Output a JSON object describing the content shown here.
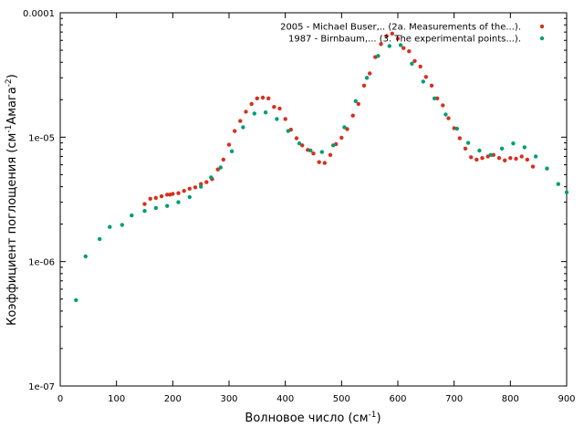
{
  "chart_data": {
    "type": "scatter",
    "title": "",
    "xlabel": "Волновое число (см",
    "xlabel_sup": "-1",
    "xlabel_end": ")",
    "ylabel": "Коэффициент поглощения (см",
    "ylabel_sup1": "-1",
    "ylabel_mid": "Амага",
    "ylabel_sup2": "-2",
    "ylabel_end": ")",
    "xlim": [
      0,
      900
    ],
    "ylim": [
      1e-07,
      0.0001
    ],
    "yscale": "log",
    "x_ticks": [
      0,
      100,
      200,
      300,
      400,
      500,
      600,
      700,
      800,
      900
    ],
    "x_tick_labels": [
      "0",
      "100",
      "200",
      "300",
      "400",
      "500",
      "600",
      "700",
      "800",
      "900"
    ],
    "y_ticks": [
      1e-07,
      1e-06,
      1e-05,
      0.0001
    ],
    "y_tick_labels": [
      "1e-07",
      "1e-06",
      "1e-05",
      "0.0001"
    ],
    "grid": false,
    "legend_position": "top-right",
    "series": [
      {
        "name": "2005 - Michael Buser,.. (2a. Measurements of the...).",
        "color": "#d7301f",
        "points": [
          [
            150,
            2.9e-06
          ],
          [
            160,
            3.2e-06
          ],
          [
            170,
            3.25e-06
          ],
          [
            180,
            3.35e-06
          ],
          [
            190,
            3.45e-06
          ],
          [
            195,
            3.45e-06
          ],
          [
            200,
            3.5e-06
          ],
          [
            210,
            3.55e-06
          ],
          [
            220,
            3.7e-06
          ],
          [
            230,
            3.85e-06
          ],
          [
            240,
            3.95e-06
          ],
          [
            250,
            4.2e-06
          ],
          [
            260,
            4.35e-06
          ],
          [
            270,
            4.6e-06
          ],
          [
            280,
            5.5e-06
          ],
          [
            290,
            6.6e-06
          ],
          [
            300,
            8.7e-06
          ],
          [
            310,
            1.12e-05
          ],
          [
            320,
            1.35e-05
          ],
          [
            330,
            1.6e-05
          ],
          [
            340,
            1.85e-05
          ],
          [
            350,
            2.05e-05
          ],
          [
            360,
            2.08e-05
          ],
          [
            370,
            2.05e-05
          ],
          [
            380,
            1.75e-05
          ],
          [
            390,
            1.7e-05
          ],
          [
            400,
            1.4e-05
          ],
          [
            410,
            1.15e-05
          ],
          [
            420,
            9.8e-06
          ],
          [
            430,
            8.6e-06
          ],
          [
            440,
            7.9e-06
          ],
          [
            450,
            7.4e-06
          ],
          [
            460,
            6.3e-06
          ],
          [
            470,
            6.2e-06
          ],
          [
            480,
            7.2e-06
          ],
          [
            490,
            8.8e-06
          ],
          [
            500,
            9.9e-06
          ],
          [
            510,
            1.16e-05
          ],
          [
            520,
            1.49e-05
          ],
          [
            530,
            1.85e-05
          ],
          [
            540,
            2.6e-05
          ],
          [
            550,
            3.25e-05
          ],
          [
            560,
            4.4e-05
          ],
          [
            570,
            5.6e-05
          ],
          [
            580,
            6.5e-05
          ],
          [
            590,
            6.8e-05
          ],
          [
            600,
            6.2e-05
          ],
          [
            610,
            5.2e-05
          ],
          [
            620,
            4.9e-05
          ],
          [
            630,
            4.1e-05
          ],
          [
            640,
            3.7e-05
          ],
          [
            650,
            3.05e-05
          ],
          [
            660,
            2.6e-05
          ],
          [
            670,
            2.05e-05
          ],
          [
            680,
            1.8e-05
          ],
          [
            690,
            1.42e-05
          ],
          [
            700,
            1.18e-05
          ],
          [
            710,
            9.8e-06
          ],
          [
            720,
            8.1e-06
          ],
          [
            730,
            6.9e-06
          ],
          [
            740,
            6.6e-06
          ],
          [
            750,
            6.8e-06
          ],
          [
            760,
            7e-06
          ],
          [
            770,
            7.2e-06
          ],
          [
            780,
            6.8e-06
          ],
          [
            790,
            6.5e-06
          ],
          [
            800,
            6.8e-06
          ],
          [
            810,
            6.7e-06
          ],
          [
            820,
            7e-06
          ],
          [
            830,
            6.6e-06
          ],
          [
            840,
            5.8e-06
          ]
        ]
      },
      {
        "name": "1987 - Birnbaum,... (3. The experimental points...).",
        "color": "#009e73",
        "points": [
          [
            28,
            4.9e-07
          ],
          [
            45,
            1.1e-06
          ],
          [
            70,
            1.52e-06
          ],
          [
            88,
            1.9e-06
          ],
          [
            110,
            1.97e-06
          ],
          [
            127,
            2.35e-06
          ],
          [
            150,
            2.55e-06
          ],
          [
            170,
            2.7e-06
          ],
          [
            190,
            2.8e-06
          ],
          [
            210,
            3e-06
          ],
          [
            230,
            3.3e-06
          ],
          [
            250,
            4e-06
          ],
          [
            268,
            4.75e-06
          ],
          [
            285,
            5.7e-06
          ],
          [
            305,
            7.7e-06
          ],
          [
            325,
            1.2e-05
          ],
          [
            345,
            1.55e-05
          ],
          [
            365,
            1.58e-05
          ],
          [
            385,
            1.4e-05
          ],
          [
            405,
            1.12e-05
          ],
          [
            425,
            8.9e-06
          ],
          [
            445,
            7.8e-06
          ],
          [
            465,
            7.6e-06
          ],
          [
            485,
            8.6e-06
          ],
          [
            505,
            1.2e-05
          ],
          [
            525,
            1.95e-05
          ],
          [
            545,
            3e-05
          ],
          [
            565,
            4.5e-05
          ],
          [
            585,
            5.4e-05
          ],
          [
            605,
            5.5e-05
          ],
          [
            625,
            3.9e-05
          ],
          [
            645,
            2.8e-05
          ],
          [
            665,
            2.05e-05
          ],
          [
            685,
            1.52e-05
          ],
          [
            705,
            1.17e-05
          ],
          [
            725,
            9e-06
          ],
          [
            745,
            7.8e-06
          ],
          [
            765,
            7.2e-06
          ],
          [
            785,
            8.1e-06
          ],
          [
            805,
            8.9e-06
          ],
          [
            825,
            8.3e-06
          ],
          [
            845,
            7e-06
          ],
          [
            865,
            5.6e-06
          ],
          [
            885,
            4.2e-06
          ],
          [
            900,
            3.6e-06
          ]
        ]
      }
    ]
  }
}
